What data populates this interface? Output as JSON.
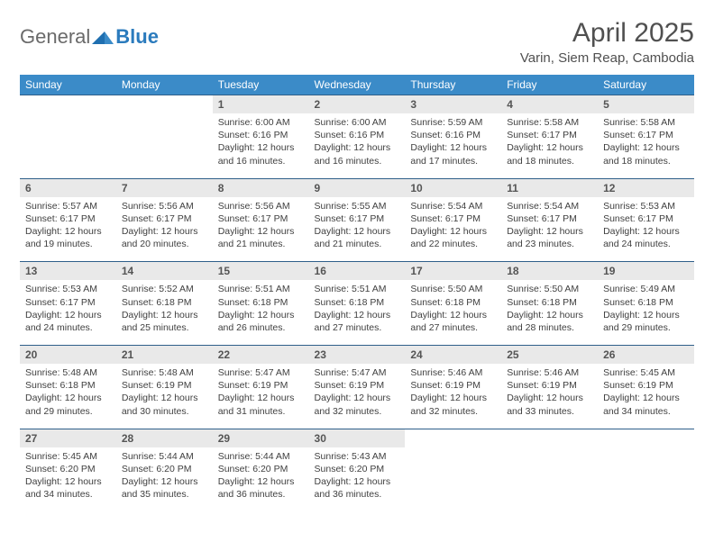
{
  "brand": {
    "name_a": "General",
    "name_b": "Blue"
  },
  "title": "April 2025",
  "location": "Varin, Siem Reap, Cambodia",
  "colors": {
    "header_bg": "#3b8bc8",
    "header_text": "#ffffff",
    "daynum_bg": "#e9e9e9",
    "rule": "#2f5f8a",
    "text": "#404040",
    "title": "#505050"
  },
  "dow": [
    "Sunday",
    "Monday",
    "Tuesday",
    "Wednesday",
    "Thursday",
    "Friday",
    "Saturday"
  ],
  "weeks": [
    [
      null,
      null,
      {
        "n": "1",
        "sr": "6:00 AM",
        "ss": "6:16 PM",
        "dl": "12 hours and 16 minutes."
      },
      {
        "n": "2",
        "sr": "6:00 AM",
        "ss": "6:16 PM",
        "dl": "12 hours and 16 minutes."
      },
      {
        "n": "3",
        "sr": "5:59 AM",
        "ss": "6:16 PM",
        "dl": "12 hours and 17 minutes."
      },
      {
        "n": "4",
        "sr": "5:58 AM",
        "ss": "6:17 PM",
        "dl": "12 hours and 18 minutes."
      },
      {
        "n": "5",
        "sr": "5:58 AM",
        "ss": "6:17 PM",
        "dl": "12 hours and 18 minutes."
      }
    ],
    [
      {
        "n": "6",
        "sr": "5:57 AM",
        "ss": "6:17 PM",
        "dl": "12 hours and 19 minutes."
      },
      {
        "n": "7",
        "sr": "5:56 AM",
        "ss": "6:17 PM",
        "dl": "12 hours and 20 minutes."
      },
      {
        "n": "8",
        "sr": "5:56 AM",
        "ss": "6:17 PM",
        "dl": "12 hours and 21 minutes."
      },
      {
        "n": "9",
        "sr": "5:55 AM",
        "ss": "6:17 PM",
        "dl": "12 hours and 21 minutes."
      },
      {
        "n": "10",
        "sr": "5:54 AM",
        "ss": "6:17 PM",
        "dl": "12 hours and 22 minutes."
      },
      {
        "n": "11",
        "sr": "5:54 AM",
        "ss": "6:17 PM",
        "dl": "12 hours and 23 minutes."
      },
      {
        "n": "12",
        "sr": "5:53 AM",
        "ss": "6:17 PM",
        "dl": "12 hours and 24 minutes."
      }
    ],
    [
      {
        "n": "13",
        "sr": "5:53 AM",
        "ss": "6:17 PM",
        "dl": "12 hours and 24 minutes."
      },
      {
        "n": "14",
        "sr": "5:52 AM",
        "ss": "6:18 PM",
        "dl": "12 hours and 25 minutes."
      },
      {
        "n": "15",
        "sr": "5:51 AM",
        "ss": "6:18 PM",
        "dl": "12 hours and 26 minutes."
      },
      {
        "n": "16",
        "sr": "5:51 AM",
        "ss": "6:18 PM",
        "dl": "12 hours and 27 minutes."
      },
      {
        "n": "17",
        "sr": "5:50 AM",
        "ss": "6:18 PM",
        "dl": "12 hours and 27 minutes."
      },
      {
        "n": "18",
        "sr": "5:50 AM",
        "ss": "6:18 PM",
        "dl": "12 hours and 28 minutes."
      },
      {
        "n": "19",
        "sr": "5:49 AM",
        "ss": "6:18 PM",
        "dl": "12 hours and 29 minutes."
      }
    ],
    [
      {
        "n": "20",
        "sr": "5:48 AM",
        "ss": "6:18 PM",
        "dl": "12 hours and 29 minutes."
      },
      {
        "n": "21",
        "sr": "5:48 AM",
        "ss": "6:19 PM",
        "dl": "12 hours and 30 minutes."
      },
      {
        "n": "22",
        "sr": "5:47 AM",
        "ss": "6:19 PM",
        "dl": "12 hours and 31 minutes."
      },
      {
        "n": "23",
        "sr": "5:47 AM",
        "ss": "6:19 PM",
        "dl": "12 hours and 32 minutes."
      },
      {
        "n": "24",
        "sr": "5:46 AM",
        "ss": "6:19 PM",
        "dl": "12 hours and 32 minutes."
      },
      {
        "n": "25",
        "sr": "5:46 AM",
        "ss": "6:19 PM",
        "dl": "12 hours and 33 minutes."
      },
      {
        "n": "26",
        "sr": "5:45 AM",
        "ss": "6:19 PM",
        "dl": "12 hours and 34 minutes."
      }
    ],
    [
      {
        "n": "27",
        "sr": "5:45 AM",
        "ss": "6:20 PM",
        "dl": "12 hours and 34 minutes."
      },
      {
        "n": "28",
        "sr": "5:44 AM",
        "ss": "6:20 PM",
        "dl": "12 hours and 35 minutes."
      },
      {
        "n": "29",
        "sr": "5:44 AM",
        "ss": "6:20 PM",
        "dl": "12 hours and 36 minutes."
      },
      {
        "n": "30",
        "sr": "5:43 AM",
        "ss": "6:20 PM",
        "dl": "12 hours and 36 minutes."
      },
      null,
      null,
      null
    ]
  ],
  "labels": {
    "sunrise": "Sunrise: ",
    "sunset": "Sunset: ",
    "daylight": "Daylight: "
  }
}
